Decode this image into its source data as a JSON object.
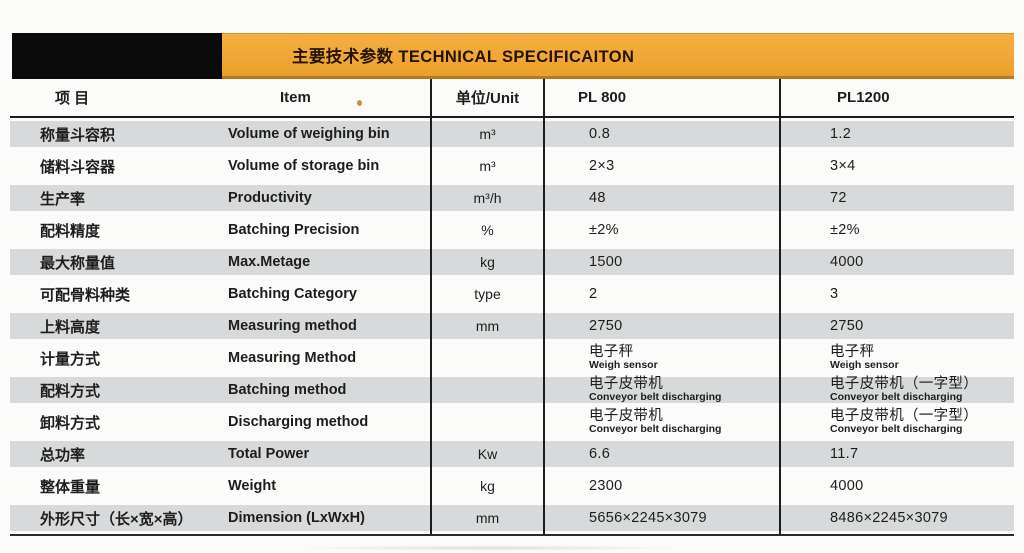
{
  "title_bar": {
    "title": "主要技术参数 TECHNICAL SPECIFICAITON",
    "accent_color": "#F1A736",
    "black_block_color": "#0B0B0B"
  },
  "table": {
    "stripe_color": "#D7D9DA",
    "columns": [
      {
        "key": "cn",
        "label": "项  目"
      },
      {
        "key": "en",
        "label": "Item"
      },
      {
        "key": "unit",
        "label": "单位/Unit"
      },
      {
        "key": "pl800",
        "label": "PL 800"
      },
      {
        "key": "pl1200",
        "label": "PL1200"
      }
    ],
    "rows": [
      {
        "cn": "称量斗容积",
        "en": "Volume of weighing bin",
        "unit": "m³",
        "pl800": "0.8",
        "pl1200": "1.2"
      },
      {
        "cn": "储料斗容器",
        "en": "Volume of storage bin",
        "unit": "m³",
        "pl800": "2×3",
        "pl1200": "3×4"
      },
      {
        "cn": "生产率",
        "en": "Productivity",
        "unit": "m³/h",
        "pl800": "48",
        "pl1200": "72"
      },
      {
        "cn": "配料精度",
        "en": "Batching Precision",
        "unit": "%",
        "pl800": "±2%",
        "pl1200": "±2%"
      },
      {
        "cn": "最大称量值",
        "en": "Max.Metage",
        "unit": "kg",
        "pl800": "1500",
        "pl1200": "4000"
      },
      {
        "cn": "可配骨料种类",
        "en": "Batching Category",
        "unit": "type",
        "pl800": "2",
        "pl1200": "3"
      },
      {
        "cn": "上料高度",
        "en": "Measuring method",
        "unit": "mm",
        "pl800": "2750",
        "pl1200": "2750"
      },
      {
        "cn": "计量方式",
        "en": "Measuring Method",
        "unit": "",
        "pl800": "电子秤",
        "pl800_sub": "Weigh sensor",
        "pl1200": "电子秤",
        "pl1200_sub": "Weigh sensor"
      },
      {
        "cn": "配料方式",
        "en": "Batching method",
        "unit": "",
        "pl800": "电子皮带机",
        "pl800_sub": "Conveyor belt discharging",
        "pl1200": "电子皮带机（一字型）",
        "pl1200_sub": "Conveyor belt discharging"
      },
      {
        "cn": "卸料方式",
        "en": "Discharging method",
        "unit": "",
        "pl800": "电子皮带机",
        "pl800_sub": "Conveyor belt discharging",
        "pl1200": "电子皮带机（一字型）",
        "pl1200_sub": "Conveyor belt discharging"
      },
      {
        "cn": "总功率",
        "en": "Total Power",
        "unit": "Kw",
        "pl800": "6.6",
        "pl1200": "11.7"
      },
      {
        "cn": "整体重量",
        "en": "Weight",
        "unit": "kg",
        "pl800": "2300",
        "pl1200": "4000"
      },
      {
        "cn": "外形尺寸（长×宽×高）",
        "en": "Dimension (LxWxH)",
        "unit": "mm",
        "pl800": "5656×2245×3079",
        "pl1200": "8486×2245×3079"
      }
    ]
  }
}
